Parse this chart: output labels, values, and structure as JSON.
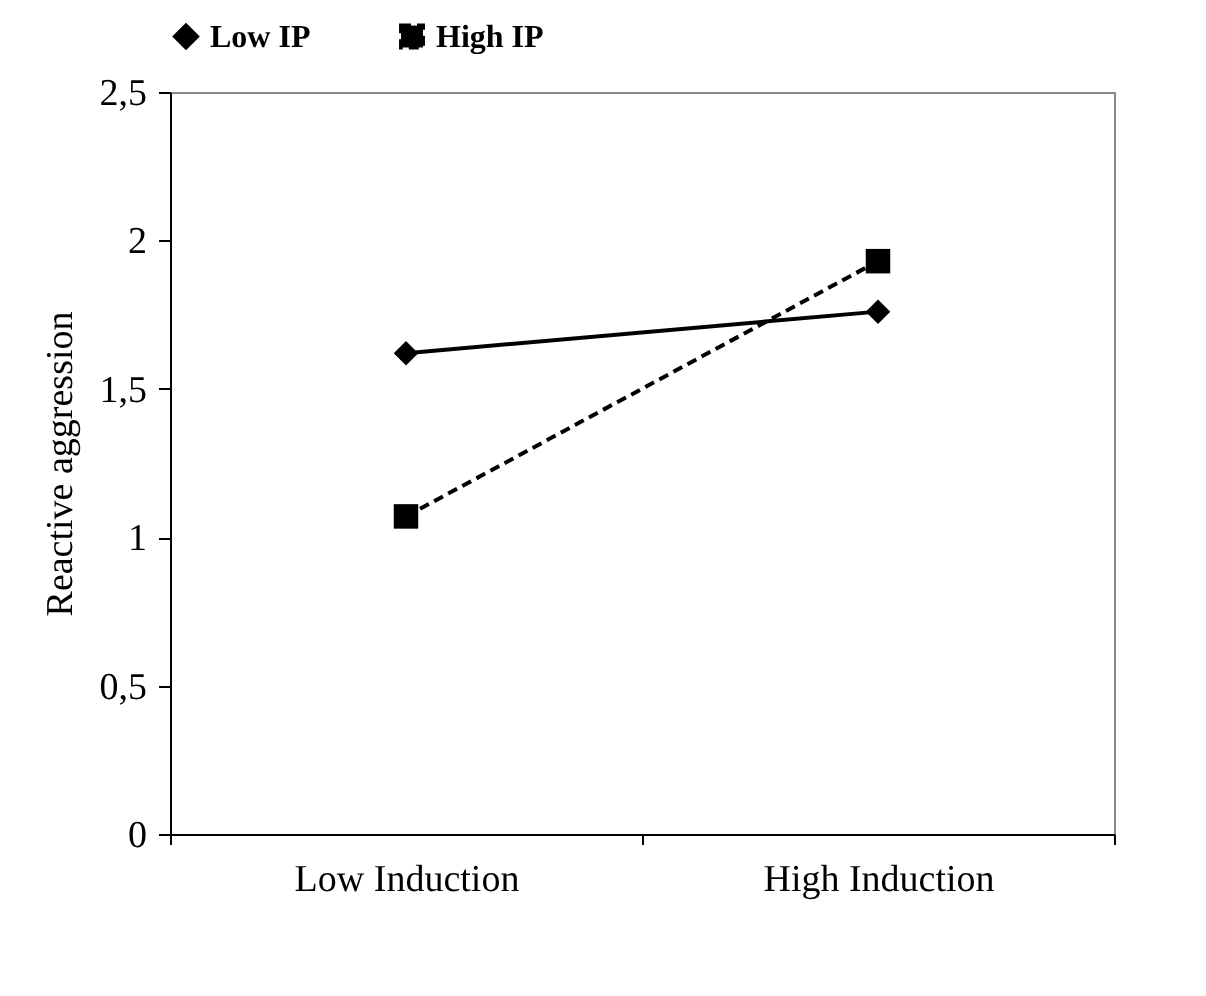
{
  "chart_data": {
    "type": "line",
    "ylabel": "Reactive aggression",
    "categories": [
      "Low Induction",
      "High Induction"
    ],
    "series": [
      {
        "name": "Low IP",
        "color": "#000000",
        "marker": "diamond",
        "line_style": "solid",
        "values": [
          1.62,
          1.76
        ]
      },
      {
        "name": "High IP",
        "color": "#000000",
        "marker": "square",
        "line_style": "dashed",
        "values": [
          1.07,
          1.93
        ]
      }
    ],
    "ylim": [
      0,
      2.5
    ],
    "yticks": [
      {
        "value": 0,
        "label": "0"
      },
      {
        "value": 0.5,
        "label": "0,5"
      },
      {
        "value": 1,
        "label": "1"
      },
      {
        "value": 1.5,
        "label": "1,5"
      },
      {
        "value": 2,
        "label": "2"
      },
      {
        "value": 2.5,
        "label": "2,5"
      }
    ],
    "grid": false,
    "legend": "top"
  }
}
